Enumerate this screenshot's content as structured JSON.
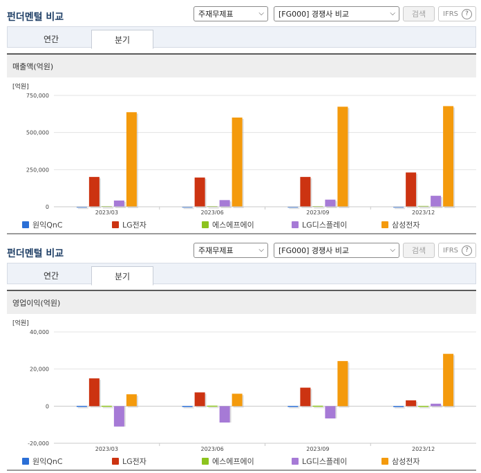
{
  "sections": [
    {
      "title": "펀더멘털 비교",
      "select1": "주재무제표",
      "select2": "[FG000] 경쟁사 비교",
      "search_label": "검색",
      "ifrs_label": "IFRS",
      "tabs": [
        {
          "label": "연간"
        },
        {
          "label": "분기"
        }
      ],
      "active_tab": 1
    },
    {
      "title": "펀더멘털 비교",
      "select1": "주재무제표",
      "select2": "[FG000] 경쟁사 비교",
      "search_label": "검색",
      "ifrs_label": "IFRS",
      "tabs": [
        {
          "label": "연간"
        },
        {
          "label": "분기"
        }
      ],
      "active_tab": 1
    }
  ],
  "icons": {
    "help": "question-circle-icon",
    "dropdown": "chevron-down-icon"
  },
  "chart_data": [
    {
      "type": "bar",
      "title": "매출액(억원)",
      "unit_label": "[억원]",
      "categories": [
        "2023/03",
        "2023/06",
        "2023/09",
        "2023/12"
      ],
      "ylim": [
        0,
        750000
      ],
      "yticks": [
        0,
        250000,
        500000,
        750000
      ],
      "ytick_labels": [
        "0",
        "250,000",
        "500,000",
        "750,000"
      ],
      "series": [
        {
          "name": "원익QnC",
          "color": "#2b6fd6",
          "values": [
            1100,
            1100,
            1000,
            1000
          ]
        },
        {
          "name": "LG전자",
          "color": "#cc3311",
          "values": [
            201000,
            197000,
            201000,
            231000
          ]
        },
        {
          "name": "에스에프에이",
          "color": "#8cc31e",
          "values": [
            4300,
            4400,
            4400,
            5500
          ]
        },
        {
          "name": "LG디스플레이",
          "color": "#a67ad6",
          "values": [
            42000,
            45000,
            48000,
            74000
          ]
        },
        {
          "name": "삼성전자",
          "color": "#f49a0c",
          "values": [
            637000,
            601000,
            674000,
            678000
          ]
        }
      ]
    },
    {
      "type": "bar",
      "title": "영업이익(억원)",
      "unit_label": "[억원]",
      "categories": [
        "2023/03",
        "2023/06",
        "2023/09",
        "2023/12"
      ],
      "ylim": [
        -20000,
        40000
      ],
      "yticks": [
        -20000,
        0,
        20000,
        40000
      ],
      "ytick_labels": [
        "-20,000",
        "0",
        "20,000",
        "40,000"
      ],
      "series": [
        {
          "name": "원익QnC",
          "color": "#2b6fd6",
          "values": [
            150,
            120,
            130,
            80
          ]
        },
        {
          "name": "LG전자",
          "color": "#cc3311",
          "values": [
            14970,
            7420,
            9970,
            3130
          ]
        },
        {
          "name": "에스에프에이",
          "color": "#8cc31e",
          "values": [
            200,
            250,
            230,
            150
          ]
        },
        {
          "name": "LG디스플레이",
          "color": "#a67ad6",
          "values": [
            -10980,
            -8820,
            -6620,
            1320
          ]
        },
        {
          "name": "삼성전자",
          "color": "#f49a0c",
          "values": [
            6400,
            6700,
            24300,
            28200
          ]
        }
      ]
    }
  ]
}
